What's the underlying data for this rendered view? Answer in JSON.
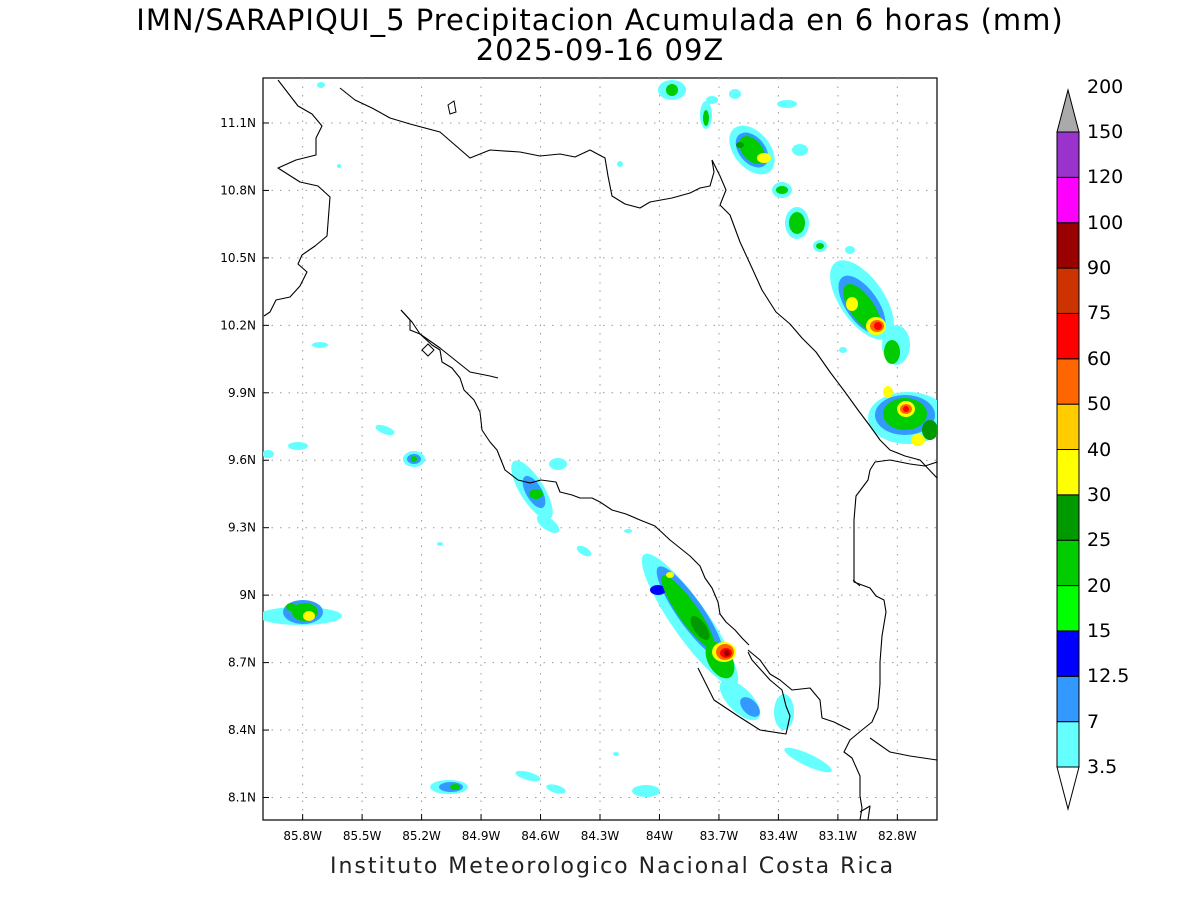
{
  "title": {
    "line1": "IMN/SARAPIQUI_5 Precipitacion Acumulada en 6 horas (mm)",
    "line2": "2025-09-16 09Z"
  },
  "credit": "Instituto Meteorologico Nacional Costa Rica",
  "map": {
    "lon_range": [
      -86.0,
      -82.6
    ],
    "lat_range": [
      8.0,
      11.3
    ],
    "lon_ticks": [
      "85.8W",
      "85.5W",
      "85.2W",
      "84.9W",
      "84.6W",
      "84.3W",
      "84W",
      "83.7W",
      "83.4W",
      "83.1W",
      "82.8W"
    ],
    "lat_ticks": [
      "8.1N",
      "8.4N",
      "8.7N",
      "9N",
      "9.3N",
      "9.6N",
      "9.9N",
      "10.2N",
      "10.5N",
      "10.8N",
      "11.1N"
    ],
    "grid": "dotted"
  },
  "colorbar": {
    "labels": [
      "3.5",
      "7",
      "12.5",
      "15",
      "20",
      "25",
      "30",
      "40",
      "50",
      "60",
      "75",
      "90",
      "100",
      "120",
      "150",
      "200"
    ],
    "colors": [
      "#66ffff",
      "#3399ff",
      "#0000ff",
      "#00ff00",
      "#00cc00",
      "#009900",
      "#ffff00",
      "#ffcc00",
      "#ff6600",
      "#ff0000",
      "#cc3300",
      "#990000",
      "#ff00ff",
      "#9933cc",
      "#f5f5f5",
      "#aaaaaa"
    ]
  }
}
